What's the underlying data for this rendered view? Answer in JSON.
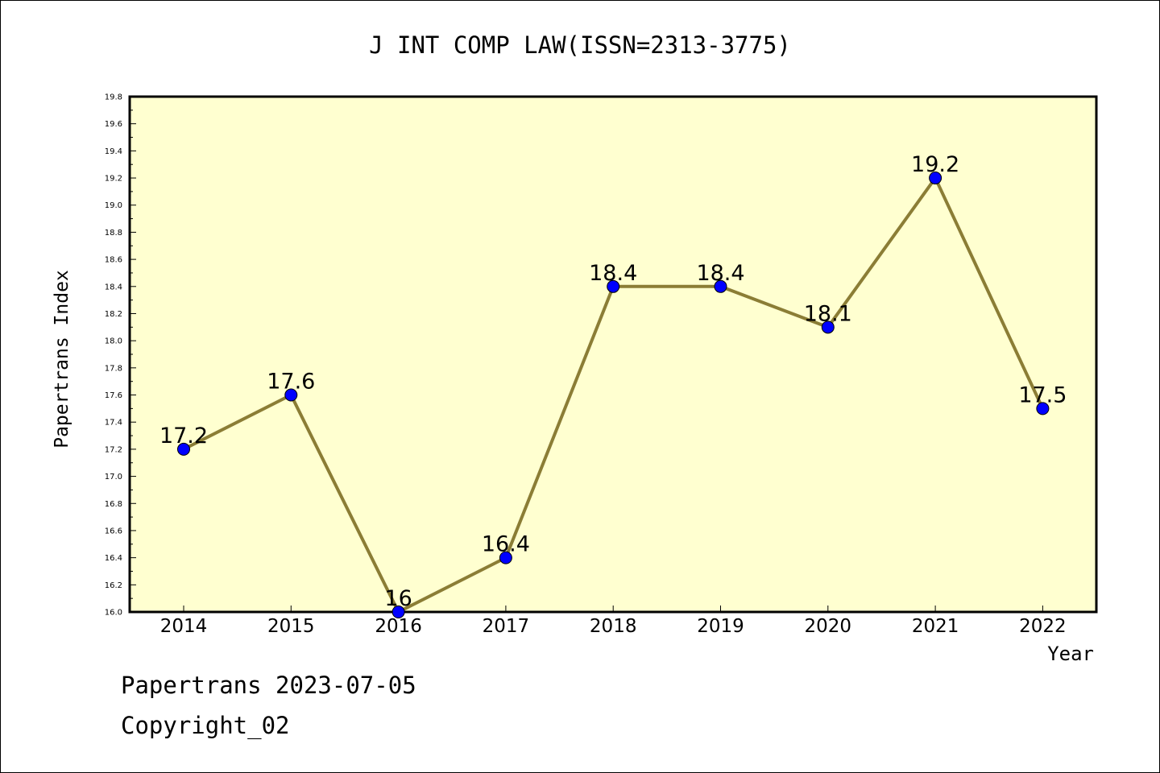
{
  "chart_data": {
    "type": "line",
    "title": "J INT COMP LAW(ISSN=2313-3775)",
    "xlabel": "Year",
    "ylabel": "Papertrans Index",
    "categories": [
      "2014",
      "2015",
      "2016",
      "2017",
      "2018",
      "2019",
      "2020",
      "2021",
      "2022"
    ],
    "series": [
      {
        "values": [
          17.2,
          17.6,
          16.0,
          16.4,
          18.4,
          18.4,
          18.1,
          19.2,
          17.5
        ]
      }
    ],
    "data_labels": [
      "17.2",
      "17.6",
      "16",
      "16.4",
      "18.4",
      "18.4",
      "18.1",
      "19.2",
      "17.5"
    ],
    "ylim": [
      16.0,
      19.8
    ],
    "y_ticks": [
      "16.0",
      "16.2",
      "16.4",
      "16.6",
      "16.8",
      "17.0",
      "17.2",
      "17.4",
      "17.6",
      "17.8",
      "18.0",
      "18.2",
      "18.4",
      "18.6",
      "18.8",
      "19.0",
      "19.2",
      "19.4",
      "19.6",
      "19.8"
    ],
    "grid": false,
    "legend": "none",
    "colors": {
      "line": "#8b7d35",
      "marker": "#0000ff",
      "plot_background": "#ffffd0",
      "axis": "#000000"
    }
  },
  "footer": {
    "line1": "Papertrans 2023-07-05",
    "line2": "Copyright_02"
  }
}
